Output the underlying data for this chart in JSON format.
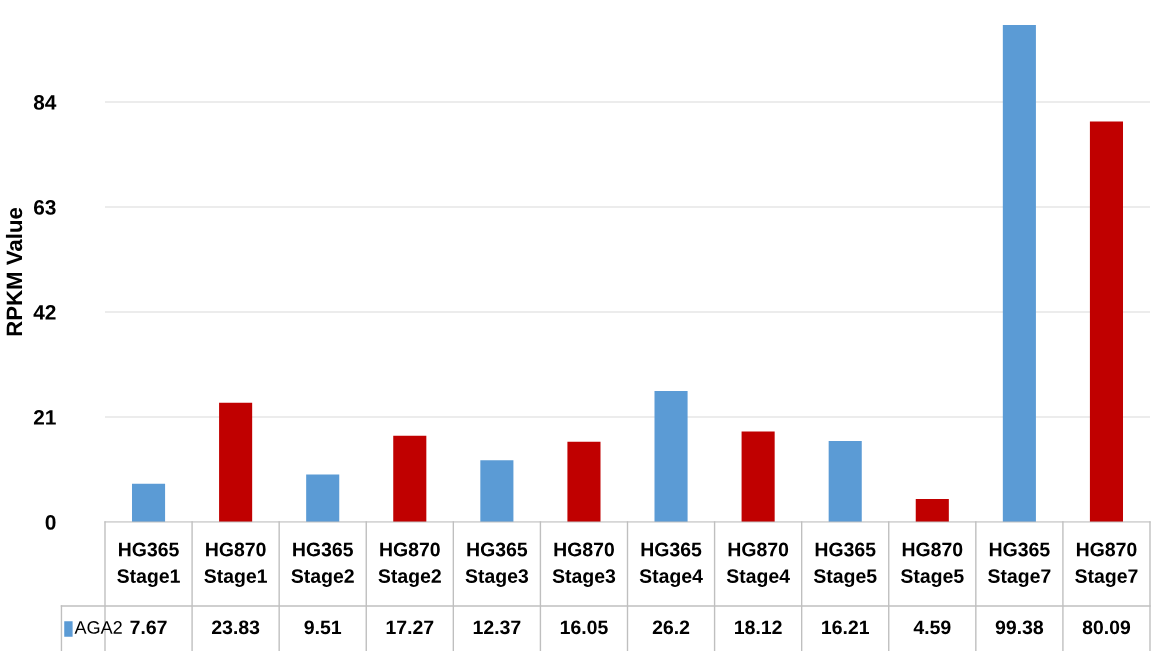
{
  "chart_data": {
    "type": "bar",
    "ylabel": "RPKM Value",
    "categories": [
      "HG365\nStage1",
      "HG870\nStage1",
      "HG365\nStage2",
      "HG870\nStage2",
      "HG365\nStage3",
      "HG870\nStage3",
      "HG365\nStage4",
      "HG870\nStage4",
      "HG365\nStage5",
      "HG870\nStage5",
      "HG365\nStage7",
      "HG870\nStage7"
    ],
    "series": [
      {
        "name": "AGA2",
        "color": "#5b9bd5",
        "colors": [
          "#5b9bd5",
          "#c00000",
          "#5b9bd5",
          "#c00000",
          "#5b9bd5",
          "#c00000",
          "#5b9bd5",
          "#c00000",
          "#5b9bd5",
          "#c00000",
          "#5b9bd5",
          "#c00000"
        ],
        "values": [
          7.67,
          23.83,
          9.51,
          17.27,
          12.37,
          16.05,
          26.2,
          18.12,
          16.21,
          4.59,
          99.38,
          80.09
        ]
      }
    ],
    "ylim": [
      0,
      100
    ],
    "yticks": [
      0,
      21,
      42,
      63,
      84
    ],
    "grid": "y",
    "data_labels": true,
    "legend": "bottom"
  }
}
